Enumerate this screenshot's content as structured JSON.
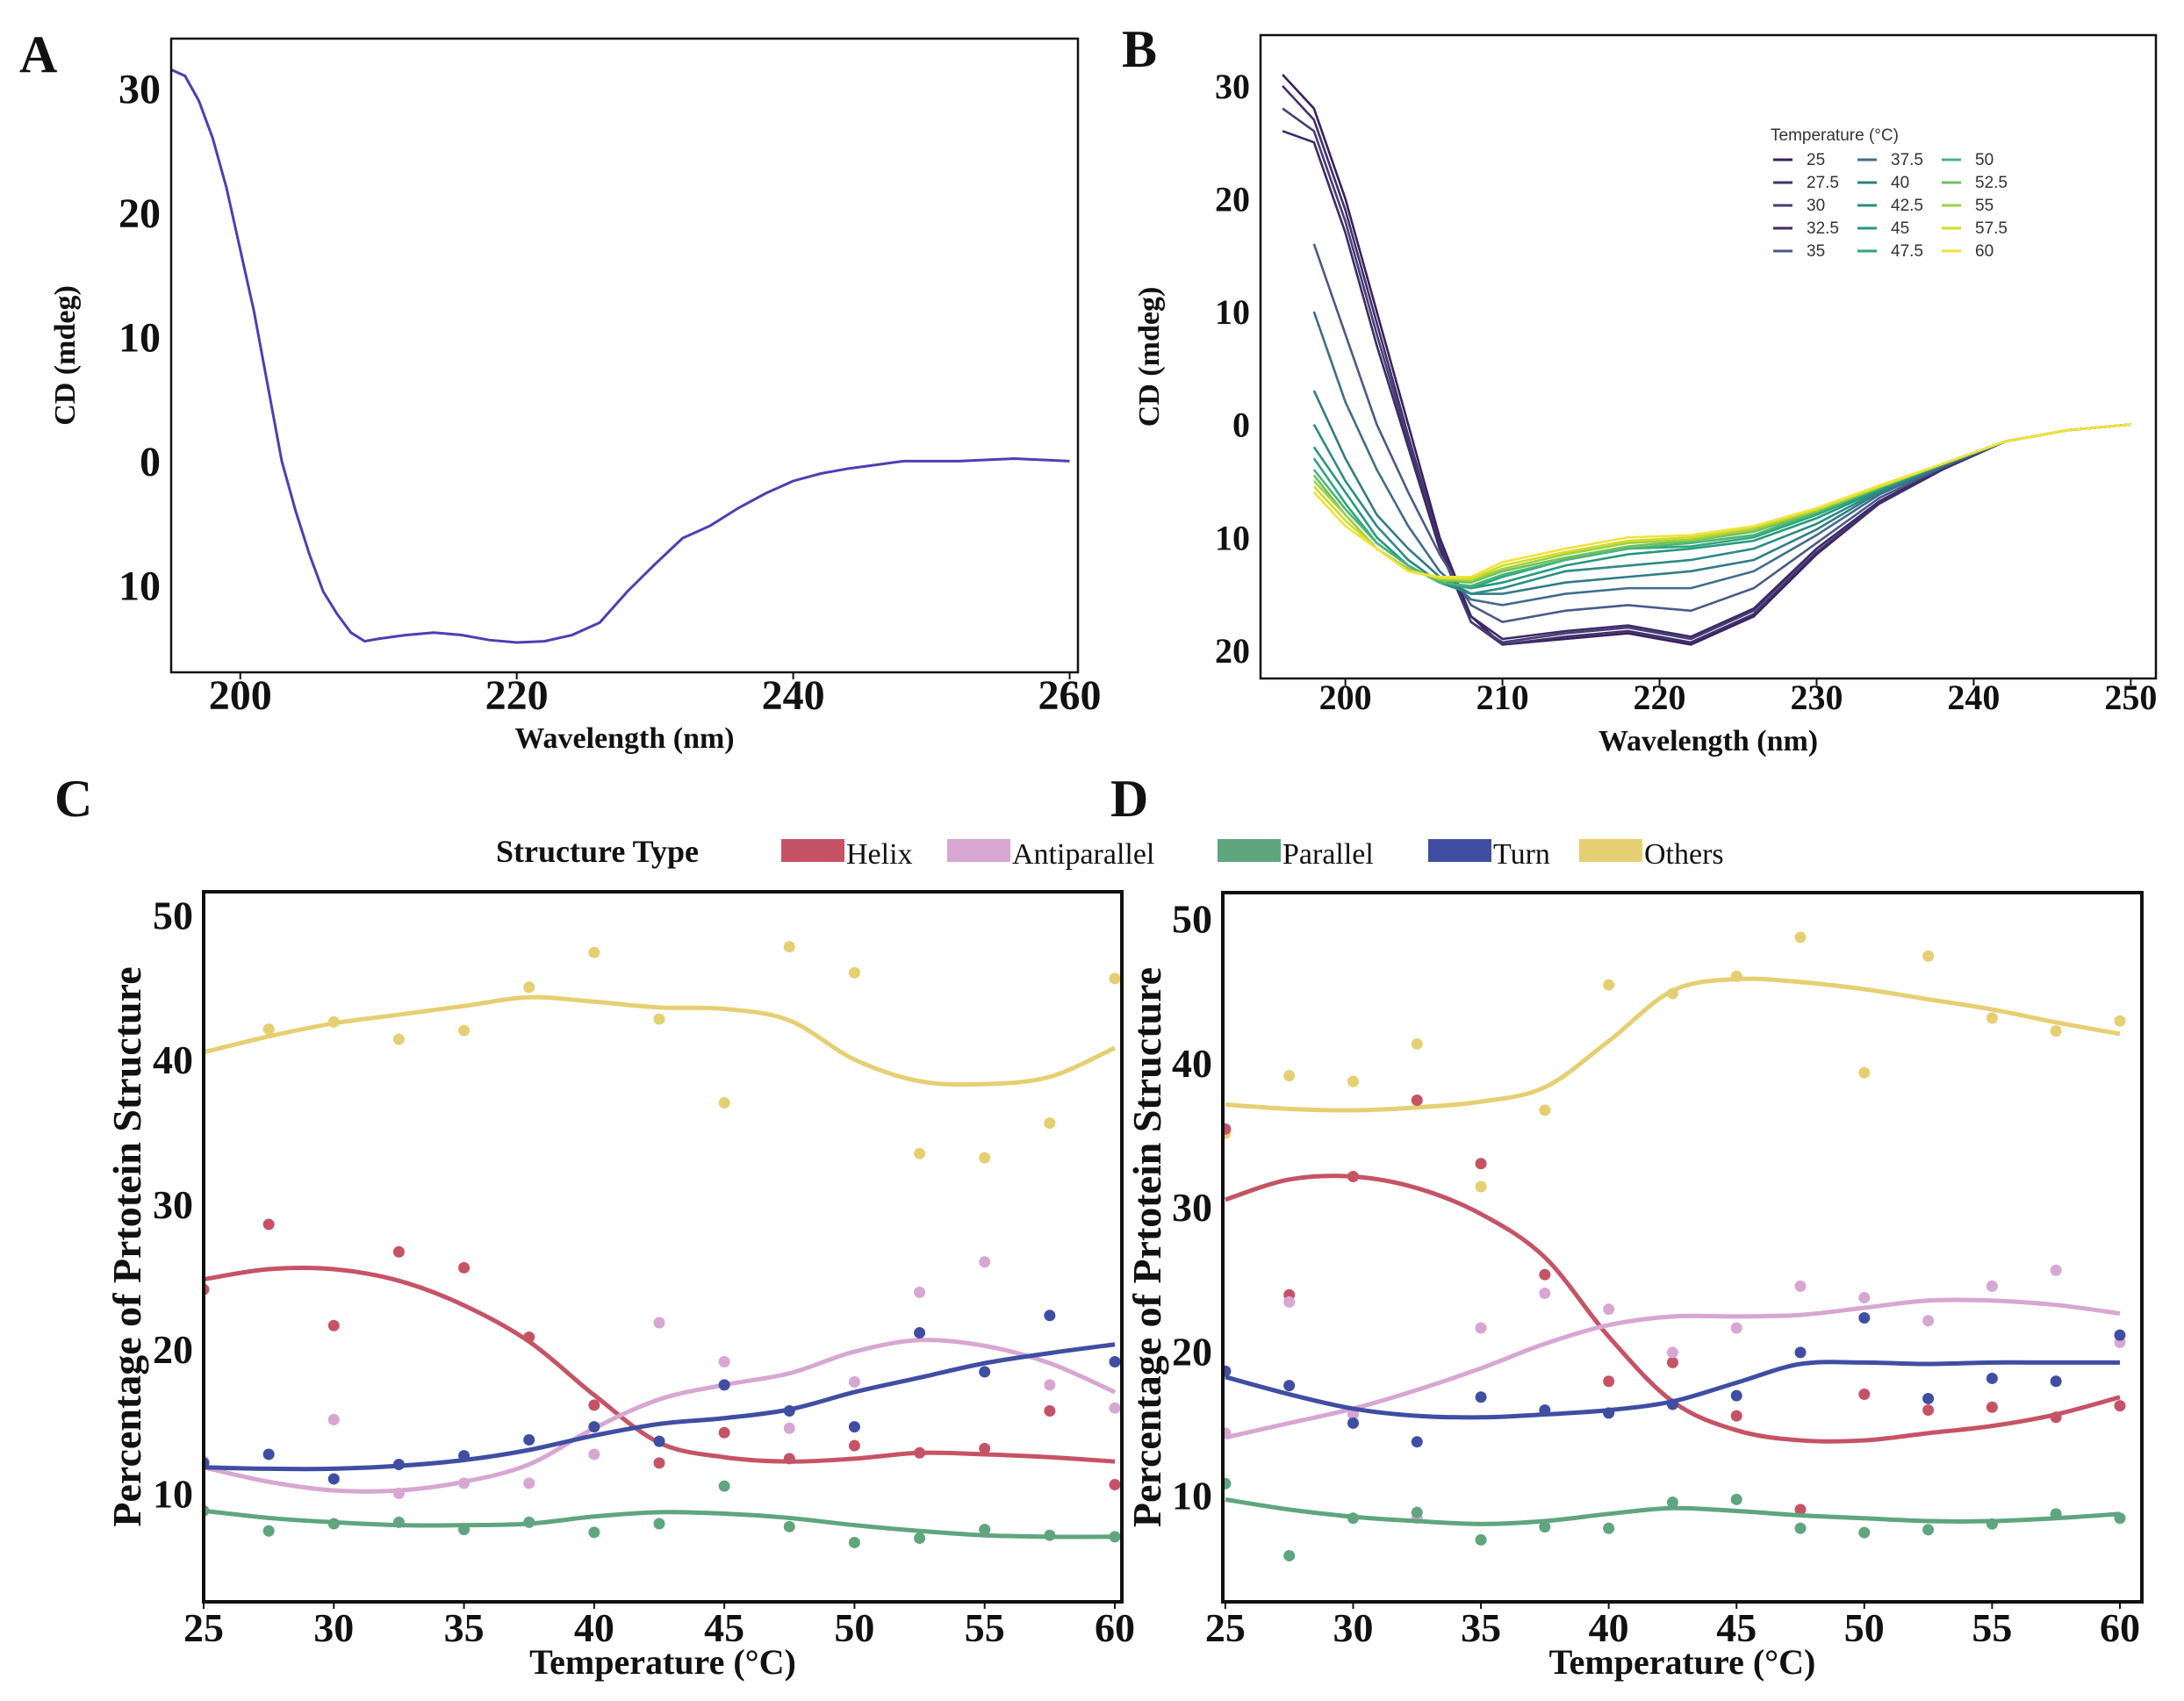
{
  "panel_labels": [
    "A",
    "B",
    "C",
    "D"
  ],
  "shared_legend": {
    "title": "Structure Type",
    "entries": [
      {
        "name": "Helix",
        "color": "#c65365"
      },
      {
        "name": "Antiparallel",
        "color": "#d8a6d2"
      },
      {
        "name": "Parallel",
        "color": "#5fa57e"
      },
      {
        "name": "Turn",
        "color": "#3f4ea3"
      },
      {
        "name": "Others",
        "color": "#e6cf72"
      }
    ]
  },
  "chart_data": [
    {
      "panel": "A",
      "type": "line",
      "xlabel": "Wavelength (nm)",
      "ylabel": "CD (mdeg)",
      "xlim": [
        195,
        260.6
      ],
      "ylim": [
        -17,
        34
      ],
      "xticks": [
        200,
        220,
        240,
        260
      ],
      "xtick_labels": [
        "200",
        "220",
        "240",
        "260"
      ],
      "yticks": [
        30,
        20,
        10,
        0,
        -10
      ],
      "ytick_labels": [
        "30",
        "20",
        "10",
        "0",
        "10"
      ],
      "color": "#4b3fb5",
      "series": [
        {
          "x": [
            195,
            196,
            197,
            198,
            199,
            200,
            201,
            202,
            203,
            204,
            205,
            206,
            207,
            208,
            209,
            210,
            212,
            214,
            216,
            218,
            220,
            222,
            224,
            226,
            228,
            230,
            232,
            234,
            236,
            238,
            240,
            242,
            244,
            246,
            248,
            252,
            256,
            260
          ],
          "y": [
            31.5,
            31,
            29,
            26,
            22,
            17,
            12,
            6,
            0,
            -4,
            -7.5,
            -10.5,
            -12.3,
            -13.8,
            -14.5,
            -14.3,
            -14,
            -13.8,
            -14,
            -14.4,
            -14.6,
            -14.5,
            -14,
            -13,
            -10.5,
            -8.3,
            -6.2,
            -5.2,
            -3.8,
            -2.6,
            -1.6,
            -1,
            -0.6,
            -0.3,
            0,
            0,
            0.2,
            0
          ]
        }
      ]
    },
    {
      "panel": "B",
      "type": "line",
      "xlabel": "Wavelength (nm)",
      "ylabel": "CD (mdeg)",
      "xlim": [
        194.6,
        251.6
      ],
      "ylim": [
        -22.5,
        34.5
      ],
      "xticks": [
        200,
        210,
        220,
        230,
        240,
        250
      ],
      "xtick_labels": [
        "200",
        "210",
        "220",
        "230",
        "240",
        "250"
      ],
      "yticks": [
        30,
        20,
        10,
        0,
        -10,
        -20
      ],
      "ytick_labels": [
        "30",
        "20",
        "10",
        "0",
        "10",
        "20"
      ],
      "legend": {
        "title": "Temperature (°C)",
        "placement": "top-right"
      },
      "x": [
        196,
        198,
        200,
        202,
        204,
        206,
        208,
        210,
        214,
        218,
        222,
        226,
        230,
        234,
        238,
        242,
        246,
        250
      ],
      "series": [
        {
          "name": "25",
          "color": "#3b1f5e",
          "values": [
            31,
            28,
            20,
            10,
            0,
            -10,
            -17,
            -19.5,
            -19,
            -18.5,
            -19.5,
            -17,
            -11.5,
            -7,
            -4,
            -1.5,
            -0.5,
            0
          ]
        },
        {
          "name": "27.5",
          "color": "#41306b",
          "values": [
            30,
            27,
            19,
            9,
            -1,
            -10.5,
            -17.5,
            -19.5,
            -18.8,
            -18.3,
            -19.3,
            -16.8,
            -11.3,
            -7,
            -4,
            -1.5,
            -0.5,
            0
          ]
        },
        {
          "name": "30",
          "color": "#463f74",
          "values": [
            28,
            26,
            18,
            8,
            -1.5,
            -11,
            -17.5,
            -19.3,
            -18.5,
            -18,
            -19,
            -16.5,
            -11,
            -6.8,
            -3.9,
            -1.5,
            -0.5,
            0
          ]
        },
        {
          "name": "32.5",
          "color": "#3d2a6a",
          "values": [
            26,
            25,
            17,
            7,
            -2,
            -11,
            -17,
            -19,
            -18.3,
            -17.8,
            -18.8,
            -16.3,
            -11,
            -6.8,
            -3.9,
            -1.5,
            -0.5,
            0
          ]
        },
        {
          "name": "35",
          "color": "#4a5a88",
          "values": [
            null,
            16,
            8,
            0,
            -6,
            -11.5,
            -16,
            -17.5,
            -16.5,
            -16,
            -16.5,
            -14.5,
            -10.5,
            -6.5,
            -3.8,
            -1.5,
            -0.5,
            0
          ]
        },
        {
          "name": "37.5",
          "color": "#3f6c8e",
          "values": [
            null,
            10,
            2,
            -4,
            -9,
            -13,
            -15.5,
            -16,
            -15,
            -14.5,
            -14.5,
            -13,
            -9.8,
            -6.2,
            -3.7,
            -1.5,
            -0.5,
            0
          ]
        },
        {
          "name": "40",
          "color": "#2f7c86",
          "values": [
            null,
            3,
            -3,
            -8,
            -11,
            -13.5,
            -15,
            -15,
            -14,
            -13.5,
            -13,
            -12,
            -9.3,
            -6,
            -3.6,
            -1.5,
            -0.5,
            0
          ]
        },
        {
          "name": "42.5",
          "color": "#2a8c84",
          "values": [
            null,
            0,
            -5,
            -9,
            -12,
            -14,
            -15,
            -14.5,
            -13,
            -12.5,
            -12,
            -11,
            -8.8,
            -5.9,
            -3.6,
            -1.5,
            -0.5,
            0
          ]
        },
        {
          "name": "45",
          "color": "#25997e",
          "values": [
            null,
            -2,
            -6,
            -10,
            -12.5,
            -14,
            -14.5,
            -14,
            -12.5,
            -11.5,
            -11,
            -10.3,
            -8.3,
            -5.8,
            -3.5,
            -1.5,
            -0.5,
            0
          ]
        },
        {
          "name": "47.5",
          "color": "#31a57a",
          "values": [
            null,
            -3,
            -7,
            -10.5,
            -12.5,
            -14,
            -14.5,
            -13.5,
            -12,
            -11,
            -10.8,
            -10,
            -8,
            -5.7,
            -3.5,
            -1.5,
            -0.5,
            0
          ]
        },
        {
          "name": "50",
          "color": "#4bb57a",
          "values": [
            null,
            -4,
            -7.5,
            -10.5,
            -12.5,
            -14,
            -14.3,
            -13.3,
            -12,
            -11,
            -10.5,
            -9.8,
            -7.8,
            -5.6,
            -3.5,
            -1.5,
            -0.5,
            0
          ]
        },
        {
          "name": "52.5",
          "color": "#6cc25c",
          "values": [
            null,
            -4.5,
            -8,
            -11,
            -12.8,
            -13.8,
            -14,
            -13,
            -11.8,
            -10.8,
            -10.3,
            -9.5,
            -7.7,
            -5.6,
            -3.5,
            -1.5,
            -0.5,
            0
          ]
        },
        {
          "name": "55",
          "color": "#a0d040",
          "values": [
            null,
            -5,
            -8,
            -11,
            -12.8,
            -13.7,
            -13.8,
            -12.8,
            -11.5,
            -10.5,
            -10.2,
            -9.3,
            -7.6,
            -5.5,
            -3.5,
            -1.5,
            -0.5,
            0
          ]
        },
        {
          "name": "57.5",
          "color": "#d0dc2a",
          "values": [
            null,
            -5.5,
            -8.5,
            -11,
            -13,
            -13.6,
            -13.7,
            -12.5,
            -11.3,
            -10.3,
            -10,
            -9.1,
            -7.5,
            -5.5,
            -3.5,
            -1.5,
            -0.5,
            0
          ]
        },
        {
          "name": "60",
          "color": "#f2e23a",
          "values": [
            null,
            -6,
            -9,
            -11,
            -13,
            -13.5,
            -13.5,
            -12.2,
            -11,
            -10,
            -9.8,
            -9,
            -7.4,
            -5.4,
            -3.5,
            -1.5,
            -0.5,
            0
          ]
        }
      ]
    },
    {
      "panel": "C",
      "type": "scatter",
      "xlabel": "Temperature (°C)",
      "ylabel": "Percentage of Prtotein Structure",
      "xlim": [
        25,
        60.27
      ],
      "ylim": [
        2.5,
        51.6
      ],
      "xticks": [
        25,
        30,
        35,
        40,
        45,
        50,
        55,
        60
      ],
      "xtick_labels": [
        "25",
        "30",
        "35",
        "40",
        "45",
        "50",
        "55",
        "60"
      ],
      "yticks": [
        50,
        40,
        30,
        20,
        10
      ],
      "ytick_labels": [
        "50",
        "40",
        "30",
        "20",
        "10"
      ],
      "x": [
        25,
        27.5,
        30,
        32.5,
        35,
        37.5,
        40,
        42.5,
        45,
        47.5,
        50,
        52.5,
        55,
        57.5,
        60
      ],
      "series": [
        {
          "name": "Others",
          "points": [
            null,
            42.1,
            42.6,
            41.4,
            42,
            45,
            47.4,
            42.8,
            37,
            47.8,
            46,
            33.5,
            33.2,
            35.6,
            45.6
          ],
          "smooth": [
            40.5,
            41.6,
            42.5,
            43.1,
            43.7,
            44.3,
            44,
            43.6,
            43.5,
            42.7,
            40,
            38.5,
            38.3,
            38.8,
            40.8
          ]
        },
        {
          "name": "Helix",
          "points": [
            24.1,
            28.6,
            21.6,
            26.7,
            25.6,
            20.8,
            16.1,
            12.1,
            14.2,
            12.4,
            13.3,
            12.8,
            13.1,
            15.7,
            10.6
          ],
          "smooth": [
            24.8,
            25.5,
            25.5,
            24.7,
            23,
            20.5,
            16.8,
            13.5,
            12.5,
            12.2,
            12.4,
            12.8,
            12.7,
            12.5,
            12.2
          ]
        },
        {
          "name": "Antiparallel",
          "points": [
            12.2,
            null,
            15.1,
            10,
            10.7,
            10.7,
            12.7,
            21.8,
            19.1,
            14.5,
            17.7,
            23.9,
            26,
            17.5,
            15.9
          ],
          "smooth": [
            11.8,
            10.8,
            10.2,
            10.2,
            10.8,
            12,
            14.5,
            16.5,
            17.5,
            18.3,
            19.8,
            20.6,
            20.2,
            19,
            17
          ]
        },
        {
          "name": "Turn",
          "points": [
            12.1,
            12.7,
            11,
            12,
            12.6,
            13.7,
            14.6,
            13.6,
            17.5,
            15.7,
            14.6,
            21.1,
            18.4,
            22.3,
            19.1
          ],
          "smooth": [
            11.8,
            11.7,
            11.7,
            11.9,
            12.3,
            13,
            14,
            14.8,
            15.2,
            15.8,
            17,
            18,
            19,
            19.7,
            20.3
          ]
        },
        {
          "name": "Parallel",
          "points": [
            8.8,
            7.4,
            7.9,
            8,
            7.5,
            8,
            7.3,
            7.9,
            10.5,
            7.7,
            6.6,
            6.9,
            7.5,
            7.1,
            7
          ],
          "smooth": [
            8.8,
            8.3,
            8,
            7.8,
            7.8,
            7.9,
            8.4,
            8.7,
            8.6,
            8.3,
            7.8,
            7.4,
            7.1,
            7,
            7
          ]
        }
      ]
    },
    {
      "panel": "D",
      "type": "scatter",
      "xlabel": "Temperature (°C)",
      "ylabel": "Percentage of Prtotein Structure",
      "xlim": [
        24.9,
        60.86
      ],
      "ylim": [
        2.6,
        51.8
      ],
      "xticks": [
        25,
        30,
        35,
        40,
        45,
        50,
        55,
        60
      ],
      "xtick_labels": [
        "25",
        "30",
        "35",
        "40",
        "45",
        "50",
        "55",
        "60"
      ],
      "yticks": [
        50,
        40,
        30,
        20,
        10
      ],
      "ytick_labels": [
        "50",
        "40",
        "30",
        "20",
        "10"
      ],
      "x": [
        25,
        27.5,
        30,
        32.5,
        35,
        37.5,
        40,
        42.5,
        45,
        47.5,
        50,
        52.5,
        55,
        57.5,
        60
      ],
      "series": [
        {
          "name": "Others",
          "points": [
            35.1,
            39.1,
            38.7,
            41.3,
            31.4,
            36.7,
            45.4,
            44.8,
            46,
            48.7,
            39.3,
            47.4,
            43.1,
            42.2,
            42.9
          ],
          "smooth": [
            37.1,
            36.8,
            36.7,
            36.9,
            37.3,
            38.3,
            41.5,
            45,
            45.8,
            45.6,
            45.1,
            44.4,
            43.7,
            42.8,
            42
          ]
        },
        {
          "name": "Helix",
          "points": [
            35.4,
            23.9,
            32.1,
            37.4,
            33,
            25.3,
            17.9,
            19.2,
            15.5,
            9,
            17,
            15.9,
            16.1,
            15.4,
            16.2
          ],
          "smooth": [
            30.5,
            31.9,
            32.1,
            31.3,
            29.5,
            26.5,
            21,
            16.5,
            14.5,
            13.8,
            13.8,
            14.3,
            14.8,
            15.6,
            16.8
          ]
        },
        {
          "name": "Antiparallel",
          "points": [
            14.3,
            23.4,
            15.6,
            8.4,
            21.6,
            24,
            22.9,
            19.9,
            21.6,
            24.5,
            23.7,
            22.1,
            24.5,
            25.6,
            20.6
          ],
          "smooth": [
            14,
            15,
            16,
            17.3,
            18.8,
            20.5,
            21.8,
            22.4,
            22.4,
            22.5,
            23,
            23.5,
            23.5,
            23.2,
            22.6
          ]
        },
        {
          "name": "Turn",
          "points": [
            18.6,
            17.6,
            15,
            13.7,
            16.8,
            15.9,
            15.7,
            16.3,
            16.9,
            19.9,
            22.3,
            16.7,
            18.1,
            17.9,
            21.1
          ],
          "smooth": [
            18.2,
            17,
            16,
            15.5,
            15.4,
            15.6,
            15.9,
            16.5,
            17.8,
            19.1,
            19.2,
            19.1,
            19.2,
            19.2,
            19.2
          ]
        },
        {
          "name": "Parallel",
          "points": [
            10.8,
            5.8,
            8.4,
            8.8,
            6.9,
            7.8,
            7.7,
            9.5,
            9.7,
            7.7,
            7.4,
            7.6,
            8,
            8.7,
            8.4
          ],
          "smooth": [
            9.7,
            9,
            8.5,
            8.2,
            8,
            8.2,
            8.7,
            9.1,
            8.9,
            8.6,
            8.4,
            8.2,
            8.2,
            8.4,
            8.7
          ]
        }
      ]
    }
  ]
}
